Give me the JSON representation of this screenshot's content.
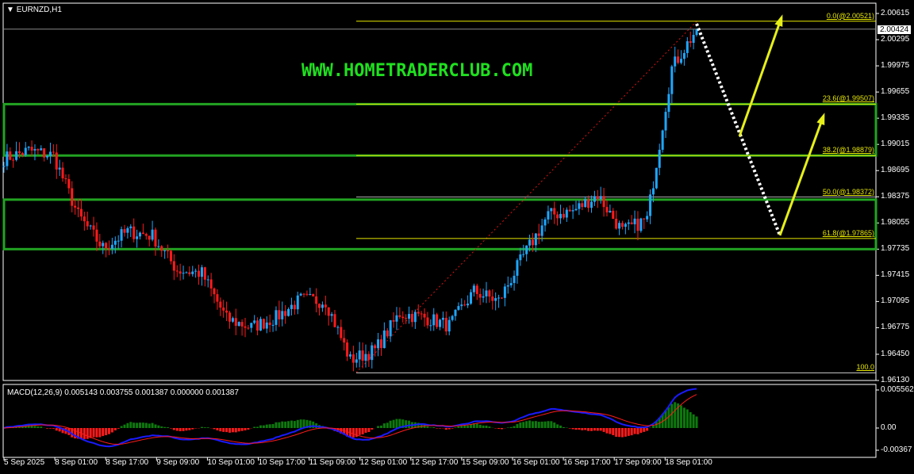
{
  "window": {
    "title": "EURNZD,H1",
    "menu_icon": "triangle-down-icon"
  },
  "watermark": "WWW.HOMETRADERCLUB.COM",
  "colors": {
    "bull": "#1ea7ff",
    "bear": "#ff1a1a",
    "zone": "#22a322",
    "fib": "#e8e800",
    "macd_main": "#1a1aff",
    "macd_signal": "#ff1a1a",
    "hist_pos": "#0c7a0c",
    "hist_neg": "#ff1a1a",
    "arrow": "#e6f018",
    "watermark": "#1fe01f"
  },
  "price_axis": {
    "labels": [
      "2.00615",
      "2.00295",
      "1.99975",
      "1.99655",
      "1.99335",
      "1.99015",
      "1.98695",
      "1.98375",
      "1.98055",
      "1.97735",
      "1.97415",
      "1.97095",
      "1.96775",
      "1.96450",
      "1.96130"
    ],
    "current_price": "2.00424"
  },
  "fibonacci": [
    {
      "label": "0.0(@2.00521)",
      "price": 2.00521
    },
    {
      "label": "23.6(@1.99507)",
      "price": 1.99507
    },
    {
      "label": "38.2(@1.98879)",
      "price": 1.98879
    },
    {
      "label": "50.0(@1.98372)",
      "price": 1.98372
    },
    {
      "label": "61.8(@1.97865)",
      "price": 1.97865
    },
    {
      "label": "100.0",
      "price": 1.96223
    }
  ],
  "zones": [
    {
      "top": 1.99507,
      "bottom": 1.98879
    },
    {
      "top": 1.9834,
      "bottom": 1.97735
    }
  ],
  "macd": {
    "label": "MACD(12,26,9) 0.005143 0.003755 0.001387 0.000000 0.001387",
    "axis": [
      "0.005562",
      "0.00",
      "-0.00367"
    ]
  },
  "time_axis": [
    "5 Sep 2025",
    "8 Sep 01:00",
    "8 Sep 17:00",
    "9 Sep 09:00",
    "10 Sep 01:00",
    "10 Sep 17:00",
    "11 Sep 09:00",
    "12 Sep 01:00",
    "12 Sep 17:00",
    "15 Sep 09:00",
    "16 Sep 01:00",
    "16 Sep 17:00",
    "17 Sep 09:00",
    "18 Sep 01:00"
  ],
  "chart_data": {
    "type": "candlestick",
    "symbol": "EURNZD",
    "timeframe": "H1",
    "ylim": [
      1.9613,
      2.00615
    ],
    "close_path_every_8_bars": [
      1.9884,
      1.9894,
      1.9888,
      1.9815,
      1.9775,
      1.9795,
      1.979,
      1.9748,
      1.9744,
      1.9688,
      1.9678,
      1.969,
      1.9712,
      1.971,
      1.9638,
      1.965,
      1.9695,
      1.969,
      1.968,
      1.9722,
      1.971,
      1.9765,
      1.9815,
      1.982,
      1.984,
      1.9795,
      1.981,
      1.9995,
      2.0042
    ]
  }
}
